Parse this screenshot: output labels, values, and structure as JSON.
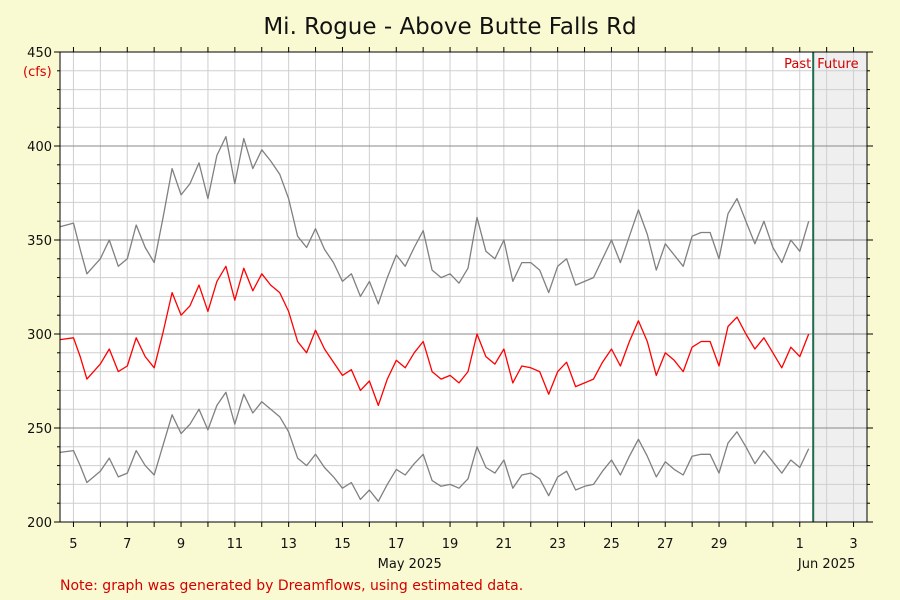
{
  "chart_data": {
    "type": "line",
    "title": "Mi. Rogue - Above Butte Falls Rd",
    "ylabel": "(cfs)",
    "ylim": [
      200,
      450
    ],
    "y_ticks": [
      200,
      250,
      300,
      350,
      400,
      450
    ],
    "x_domain": [
      "2025-05-04T12:00",
      "2025-06-03T12:00"
    ],
    "x_tick_labels": [
      "5",
      "7",
      "9",
      "11",
      "13",
      "15",
      "17",
      "19",
      "21",
      "23",
      "25",
      "27",
      "29",
      "1",
      "3"
    ],
    "x_tick_dates": [
      "2025-05-05",
      "2025-05-07",
      "2025-05-09",
      "2025-05-11",
      "2025-05-13",
      "2025-05-15",
      "2025-05-17",
      "2025-05-19",
      "2025-05-21",
      "2025-05-23",
      "2025-05-25",
      "2025-05-27",
      "2025-05-29",
      "2025-06-01",
      "2025-06-03"
    ],
    "month_labels": [
      {
        "label": "May 2025",
        "date": "2025-05-17T12:00"
      },
      {
        "label": "Jun 2025",
        "date": "2025-06-02"
      }
    ],
    "now": "2025-06-01T12:00",
    "past_label": "Past",
    "future_label": "Future",
    "grid": true,
    "series": [
      {
        "color": "#ff0000",
        "x": [
          "2025-05-04T12:00",
          "2025-05-05T00:00",
          "2025-05-05T06:00",
          "2025-05-05T12:00",
          "2025-05-06T00:00",
          "2025-05-06T08:00",
          "2025-05-06T16:00",
          "2025-05-07T00:00",
          "2025-05-07T08:00",
          "2025-05-07T16:00",
          "2025-05-08T00:00",
          "2025-05-08T08:00",
          "2025-05-08T16:00",
          "2025-05-09T00:00",
          "2025-05-09T08:00",
          "2025-05-09T16:00",
          "2025-05-10T00:00",
          "2025-05-10T08:00",
          "2025-05-10T16:00",
          "2025-05-11T00:00",
          "2025-05-11T08:00",
          "2025-05-11T16:00",
          "2025-05-12T00:00",
          "2025-05-12T08:00",
          "2025-05-12T16:00",
          "2025-05-13T00:00",
          "2025-05-13T08:00",
          "2025-05-13T16:00",
          "2025-05-14T00:00",
          "2025-05-14T08:00",
          "2025-05-14T16:00",
          "2025-05-15T00:00",
          "2025-05-15T08:00",
          "2025-05-15T16:00",
          "2025-05-16T00:00",
          "2025-05-16T08:00",
          "2025-05-16T16:00",
          "2025-05-17T00:00",
          "2025-05-17T08:00",
          "2025-05-17T16:00",
          "2025-05-18T00:00",
          "2025-05-18T08:00",
          "2025-05-18T16:00",
          "2025-05-19T00:00",
          "2025-05-19T08:00",
          "2025-05-19T16:00",
          "2025-05-20T00:00",
          "2025-05-20T08:00",
          "2025-05-20T16:00",
          "2025-05-21T00:00",
          "2025-05-21T08:00",
          "2025-05-21T16:00",
          "2025-05-22T00:00",
          "2025-05-22T08:00",
          "2025-05-22T16:00",
          "2025-05-23T00:00",
          "2025-05-23T08:00",
          "2025-05-23T16:00",
          "2025-05-24T00:00",
          "2025-05-24T08:00",
          "2025-05-24T16:00",
          "2025-05-25T00:00",
          "2025-05-25T08:00",
          "2025-05-25T16:00",
          "2025-05-26T00:00",
          "2025-05-26T08:00",
          "2025-05-26T16:00",
          "2025-05-27T00:00",
          "2025-05-27T08:00",
          "2025-05-27T16:00",
          "2025-05-28T00:00",
          "2025-05-28T08:00",
          "2025-05-28T16:00",
          "2025-05-29T00:00",
          "2025-05-29T08:00",
          "2025-05-29T16:00",
          "2025-05-30T00:00",
          "2025-05-30T08:00",
          "2025-05-30T16:00",
          "2025-05-31T00:00",
          "2025-05-31T08:00",
          "2025-05-31T16:00",
          "2025-06-01T00:00",
          "2025-06-01T08:00"
        ],
        "values": [
          297,
          298,
          288,
          276,
          284,
          292,
          280,
          283,
          298,
          288,
          282,
          301,
          322,
          310,
          315,
          326,
          312,
          328,
          336,
          318,
          335,
          323,
          332,
          326,
          322,
          312,
          296,
          290,
          302,
          292,
          285,
          278,
          281,
          270,
          275,
          262,
          276,
          286,
          282,
          290,
          296,
          280,
          276,
          278,
          274,
          280,
          300,
          288,
          284,
          292,
          274,
          283,
          282,
          280,
          268,
          280,
          285,
          272,
          274,
          276,
          285,
          292,
          283,
          296,
          307,
          296,
          278,
          290,
          286,
          280,
          293,
          296,
          296,
          283,
          304,
          309,
          300,
          292,
          298,
          290,
          282,
          293,
          288,
          300
        ]
      },
      {
        "color": "#808080",
        "x": [
          "2025-05-04T12:00",
          "2025-05-05T00:00",
          "2025-05-05T06:00",
          "2025-05-05T12:00",
          "2025-05-06T00:00",
          "2025-05-06T08:00",
          "2025-05-06T16:00",
          "2025-05-07T00:00",
          "2025-05-07T08:00",
          "2025-05-07T16:00",
          "2025-05-08T00:00",
          "2025-05-08T08:00",
          "2025-05-08T16:00",
          "2025-05-09T00:00",
          "2025-05-09T08:00",
          "2025-05-09T16:00",
          "2025-05-10T00:00",
          "2025-05-10T08:00",
          "2025-05-10T16:00",
          "2025-05-11T00:00",
          "2025-05-11T08:00",
          "2025-05-11T16:00",
          "2025-05-12T00:00",
          "2025-05-12T08:00",
          "2025-05-12T16:00",
          "2025-05-13T00:00",
          "2025-05-13T08:00",
          "2025-05-13T16:00",
          "2025-05-14T00:00",
          "2025-05-14T08:00",
          "2025-05-14T16:00",
          "2025-05-15T00:00",
          "2025-05-15T08:00",
          "2025-05-15T16:00",
          "2025-05-16T00:00",
          "2025-05-16T08:00",
          "2025-05-16T16:00",
          "2025-05-17T00:00",
          "2025-05-17T08:00",
          "2025-05-17T16:00",
          "2025-05-18T00:00",
          "2025-05-18T08:00",
          "2025-05-18T16:00",
          "2025-05-19T00:00",
          "2025-05-19T08:00",
          "2025-05-19T16:00",
          "2025-05-20T00:00",
          "2025-05-20T08:00",
          "2025-05-20T16:00",
          "2025-05-21T00:00",
          "2025-05-21T08:00",
          "2025-05-21T16:00",
          "2025-05-22T00:00",
          "2025-05-22T08:00",
          "2025-05-22T16:00",
          "2025-05-23T00:00",
          "2025-05-23T08:00",
          "2025-05-23T16:00",
          "2025-05-24T00:00",
          "2025-05-24T08:00",
          "2025-05-24T16:00",
          "2025-05-25T00:00",
          "2025-05-25T08:00",
          "2025-05-25T16:00",
          "2025-05-26T00:00",
          "2025-05-26T08:00",
          "2025-05-26T16:00",
          "2025-05-27T00:00",
          "2025-05-27T08:00",
          "2025-05-27T16:00",
          "2025-05-28T00:00",
          "2025-05-28T08:00",
          "2025-05-28T16:00",
          "2025-05-29T00:00",
          "2025-05-29T08:00",
          "2025-05-29T16:00",
          "2025-05-30T00:00",
          "2025-05-30T08:00",
          "2025-05-30T16:00",
          "2025-05-31T00:00",
          "2025-05-31T08:00",
          "2025-05-31T16:00",
          "2025-06-01T00:00",
          "2025-06-01T08:00"
        ],
        "values": [
          357,
          359,
          345,
          332,
          340,
          350,
          336,
          340,
          358,
          346,
          338,
          362,
          388,
          374,
          380,
          391,
          372,
          395,
          405,
          380,
          404,
          388,
          398,
          392,
          385,
          372,
          352,
          346,
          356,
          345,
          338,
          328,
          332,
          320,
          328,
          316,
          330,
          342,
          336,
          346,
          355,
          334,
          330,
          332,
          327,
          335,
          362,
          344,
          340,
          350,
          328,
          338,
          338,
          334,
          322,
          336,
          340,
          326,
          328,
          330,
          340,
          350,
          338,
          352,
          366,
          353,
          334,
          348,
          342,
          336,
          352,
          354,
          354,
          340,
          364,
          372,
          360,
          348,
          360,
          346,
          338,
          350,
          344,
          360
        ]
      },
      {
        "color": "#808080",
        "x": [
          "2025-05-04T12:00",
          "2025-05-05T00:00",
          "2025-05-05T06:00",
          "2025-05-05T12:00",
          "2025-05-06T00:00",
          "2025-05-06T08:00",
          "2025-05-06T16:00",
          "2025-05-07T00:00",
          "2025-05-07T08:00",
          "2025-05-07T16:00",
          "2025-05-08T00:00",
          "2025-05-08T08:00",
          "2025-05-08T16:00",
          "2025-05-09T00:00",
          "2025-05-09T08:00",
          "2025-05-09T16:00",
          "2025-05-10T00:00",
          "2025-05-10T08:00",
          "2025-05-10T16:00",
          "2025-05-11T00:00",
          "2025-05-11T08:00",
          "2025-05-11T16:00",
          "2025-05-12T00:00",
          "2025-05-12T08:00",
          "2025-05-12T16:00",
          "2025-05-13T00:00",
          "2025-05-13T08:00",
          "2025-05-13T16:00",
          "2025-05-14T00:00",
          "2025-05-14T08:00",
          "2025-05-14T16:00",
          "2025-05-15T00:00",
          "2025-05-15T08:00",
          "2025-05-15T16:00",
          "2025-05-16T00:00",
          "2025-05-16T08:00",
          "2025-05-16T16:00",
          "2025-05-17T00:00",
          "2025-05-17T08:00",
          "2025-05-17T16:00",
          "2025-05-18T00:00",
          "2025-05-18T08:00",
          "2025-05-18T16:00",
          "2025-05-19T00:00",
          "2025-05-19T08:00",
          "2025-05-19T16:00",
          "2025-05-20T00:00",
          "2025-05-20T08:00",
          "2025-05-20T16:00",
          "2025-05-21T00:00",
          "2025-05-21T08:00",
          "2025-05-21T16:00",
          "2025-05-22T00:00",
          "2025-05-22T08:00",
          "2025-05-22T16:00",
          "2025-05-23T00:00",
          "2025-05-23T08:00",
          "2025-05-23T16:00",
          "2025-05-24T00:00",
          "2025-05-24T08:00",
          "2025-05-24T16:00",
          "2025-05-25T00:00",
          "2025-05-25T08:00",
          "2025-05-25T16:00",
          "2025-05-26T00:00",
          "2025-05-26T08:00",
          "2025-05-26T16:00",
          "2025-05-27T00:00",
          "2025-05-27T08:00",
          "2025-05-27T16:00",
          "2025-05-28T00:00",
          "2025-05-28T08:00",
          "2025-05-28T16:00",
          "2025-05-29T00:00",
          "2025-05-29T08:00",
          "2025-05-29T16:00",
          "2025-05-30T00:00",
          "2025-05-30T08:00",
          "2025-05-30T16:00",
          "2025-05-31T00:00",
          "2025-05-31T08:00",
          "2025-05-31T16:00",
          "2025-06-01T00:00",
          "2025-06-01T08:00"
        ],
        "values": [
          237,
          238,
          230,
          221,
          227,
          234,
          224,
          226,
          238,
          230,
          225,
          241,
          257,
          247,
          252,
          260,
          249,
          262,
          269,
          252,
          268,
          258,
          264,
          260,
          256,
          248,
          234,
          230,
          236,
          229,
          224,
          218,
          221,
          212,
          217,
          211,
          220,
          228,
          225,
          231,
          236,
          222,
          219,
          220,
          218,
          223,
          240,
          229,
          226,
          233,
          218,
          225,
          226,
          223,
          214,
          224,
          227,
          217,
          219,
          220,
          227,
          233,
          225,
          235,
          244,
          235,
          224,
          232,
          228,
          225,
          235,
          236,
          236,
          226,
          242,
          248,
          240,
          231,
          238,
          232,
          226,
          233,
          229,
          239
        ]
      }
    ]
  },
  "footer": {
    "note": "Note: graph was generated by Dreamflows, using estimated data."
  }
}
